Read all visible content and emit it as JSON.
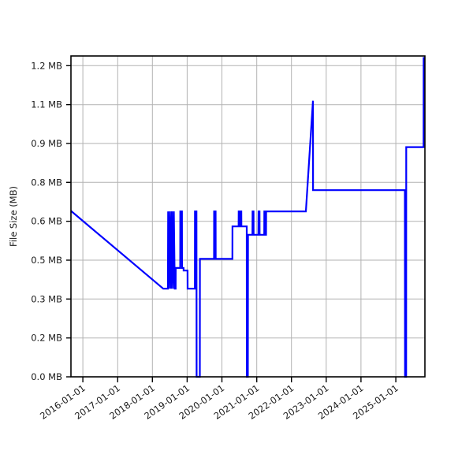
{
  "chart_data": {
    "type": "line",
    "title": "",
    "xlabel": "",
    "ylabel": "File Size (MB)",
    "grid": true,
    "legend": false,
    "line_color": "#0000ff",
    "grid_color": "#b2b2b2",
    "spine_color": "#000000",
    "x_range": [
      "2015-08-29",
      "2025-11-03"
    ],
    "y_range": [
      0,
      1.2375
    ],
    "x_tick_labels": [
      "2016-01-01",
      "2017-01-01",
      "2018-01-01",
      "2019-01-01",
      "2020-01-01",
      "2021-01-01",
      "2022-01-01",
      "2023-01-01",
      "2024-01-01",
      "2025-01-01"
    ],
    "y_tick_values": [
      0,
      0.15,
      0.3,
      0.45,
      0.6,
      0.75,
      0.9,
      1.05,
      1.2
    ],
    "y_tick_labels": [
      "0.0 MB",
      "0.2 MB",
      "0.3 MB",
      "0.5 MB",
      "0.6 MB",
      "0.8 MB",
      "0.9 MB",
      "1.1 MB",
      "1.2 MB"
    ],
    "series": [
      {
        "name": "file-size",
        "points": [
          [
            "2015-08-29",
            0.64
          ],
          [
            "2018-04-25",
            0.34
          ],
          [
            "2018-06-13",
            0.34
          ],
          [
            "2018-06-15",
            0.638
          ],
          [
            "2018-06-25",
            0.34
          ],
          [
            "2018-07-05",
            0.638
          ],
          [
            "2018-07-15",
            0.34
          ],
          [
            "2018-07-25",
            0.638
          ],
          [
            "2018-08-04",
            0.34
          ],
          [
            "2018-08-14",
            0.638
          ],
          [
            "2018-08-24",
            0.34
          ],
          [
            "2018-09-02",
            0.34
          ],
          [
            "2018-09-03",
            0.42
          ],
          [
            "2018-10-20",
            0.42
          ],
          [
            "2018-10-21",
            0.638
          ],
          [
            "2018-11-07",
            0.638
          ],
          [
            "2018-11-08",
            0.42
          ],
          [
            "2018-11-24",
            0.42
          ],
          [
            "2018-11-25",
            0.41
          ],
          [
            "2019-01-05",
            0.41
          ],
          [
            "2019-01-06",
            0.34
          ],
          [
            "2019-03-23",
            0.34
          ],
          [
            "2019-03-24",
            0.638
          ],
          [
            "2019-04-09",
            0.638
          ],
          [
            "2019-04-10",
            0.0
          ],
          [
            "2019-05-14",
            0.0
          ],
          [
            "2019-05-15",
            0.455
          ],
          [
            "2019-10-10",
            0.455
          ],
          [
            "2019-10-11",
            0.638
          ],
          [
            "2019-10-27",
            0.638
          ],
          [
            "2019-10-28",
            0.455
          ],
          [
            "2020-04-20",
            0.455
          ],
          [
            "2020-04-21",
            0.58
          ],
          [
            "2020-06-25",
            0.58
          ],
          [
            "2020-06-26",
            0.638
          ],
          [
            "2020-07-06",
            0.638
          ],
          [
            "2020-07-07",
            0.58
          ],
          [
            "2020-07-12",
            0.58
          ],
          [
            "2020-07-13",
            0.638
          ],
          [
            "2020-07-23",
            0.638
          ],
          [
            "2020-07-24",
            0.58
          ],
          [
            "2020-09-18",
            0.58
          ],
          [
            "2020-09-19",
            0.0
          ],
          [
            "2020-09-30",
            0.0
          ],
          [
            "2020-10-01",
            0.548
          ],
          [
            "2020-11-17",
            0.548
          ],
          [
            "2020-11-18",
            0.638
          ],
          [
            "2020-11-28",
            0.638
          ],
          [
            "2020-11-29",
            0.548
          ],
          [
            "2021-01-19",
            0.548
          ],
          [
            "2021-01-20",
            0.638
          ],
          [
            "2021-01-30",
            0.638
          ],
          [
            "2021-01-31",
            0.548
          ],
          [
            "2021-03-21",
            0.548
          ],
          [
            "2021-03-22",
            0.638
          ],
          [
            "2021-04-01",
            0.638
          ],
          [
            "2021-04-02",
            0.548
          ],
          [
            "2021-04-09",
            0.548
          ],
          [
            "2021-04-10",
            0.638
          ],
          [
            "2022-06-01",
            0.638
          ],
          [
            "2022-08-15",
            1.065
          ],
          [
            "2022-08-16",
            0.72
          ],
          [
            "2025-04-07",
            0.72
          ],
          [
            "2025-04-08",
            0.0
          ],
          [
            "2025-04-20",
            0.0
          ],
          [
            "2025-04-21",
            0.886
          ],
          [
            "2025-10-20",
            0.886
          ],
          [
            "2025-10-21",
            1.23
          ],
          [
            "2025-11-03",
            1.23
          ]
        ]
      }
    ]
  }
}
